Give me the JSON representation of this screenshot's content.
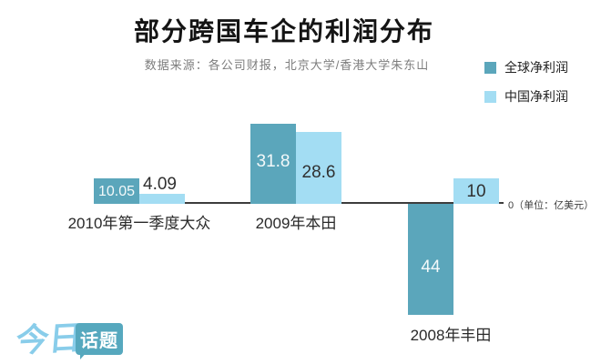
{
  "title": "部分跨国车企的利润分布",
  "subtitle": "数据来源：各公司财报，北京大学/香港大学朱东山",
  "legend": [
    {
      "label": "全球净利润",
      "color": "#5ba6bb"
    },
    {
      "label": "中国净利润",
      "color": "#a3ddf3"
    }
  ],
  "axis_note": "0（单位：亿美元）",
  "logo": {
    "script_text": "今日",
    "badge_text": "话题"
  },
  "colors": {
    "global_series": "#5ba6bb",
    "china_series": "#a3ddf3",
    "axis": "#3d3d3d"
  },
  "chart_data": {
    "type": "bar",
    "title": "部分跨国车企的利润分布",
    "unit": "亿美元",
    "categories": [
      "2010年第一季度大众",
      "2009年本田",
      "2008年丰田"
    ],
    "series": [
      {
        "name": "全球净利润",
        "color": "#5ba6bb",
        "values": [
          10.05,
          31.8,
          -44
        ],
        "labels": [
          "10.05",
          "31.8",
          "44"
        ]
      },
      {
        "name": "中国净利润",
        "color": "#a3ddf3",
        "values": [
          4.09,
          28.6,
          10
        ],
        "labels": [
          "4.09",
          "28.6",
          "10"
        ]
      }
    ],
    "baseline": 0,
    "ylim": [
      -50,
      36
    ],
    "grid": false,
    "legend_position": "top-right",
    "value_labels_shown": true
  }
}
